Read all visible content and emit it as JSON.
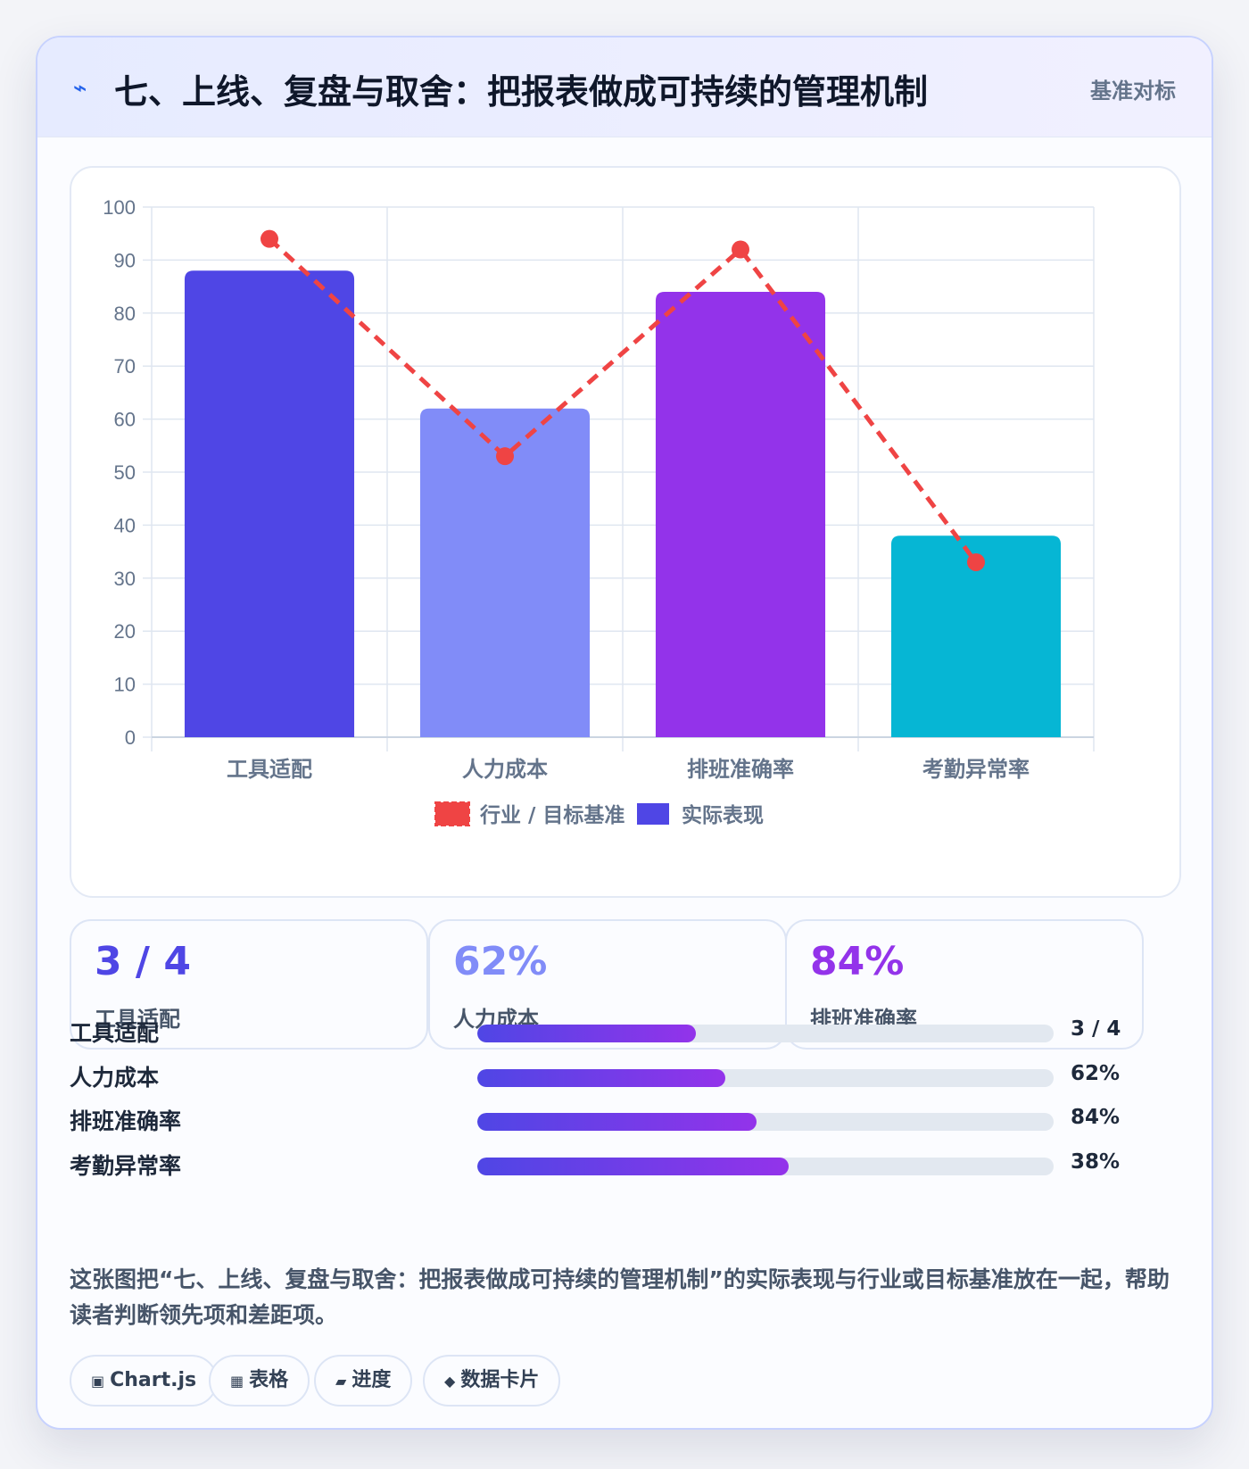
{
  "header": {
    "icon": "⌁",
    "title": "七、上线、复盘与取舍：把报表做成可持续的管理机制",
    "tag": "基准对标"
  },
  "chart_data": {
    "type": "bar",
    "categories": [
      "工具适配",
      "人力成本",
      "排班准确率",
      "考勤异常率"
    ],
    "series": [
      {
        "name": "实际表现",
        "type": "bar",
        "values": [
          88,
          62,
          84,
          38
        ],
        "colors": [
          "#4f46e5",
          "#818cf8",
          "#9333ea",
          "#06b6d4"
        ]
      },
      {
        "name": "行业 / 目标基准",
        "type": "line",
        "values": [
          94,
          53,
          92,
          33
        ],
        "color": "#ef4444",
        "dashed": true
      }
    ],
    "ylim": [
      0,
      100
    ],
    "yticks": [
      0,
      10,
      20,
      30,
      40,
      50,
      60,
      70,
      80,
      90,
      100
    ],
    "grid": true,
    "legend": "bottom",
    "legend_order": [
      "行业 / 目标基准",
      "实际表现"
    ]
  },
  "stats": [
    {
      "value": "3 / 4",
      "label": "工具适配",
      "color": "#4f46e5"
    },
    {
      "value": "62%",
      "label": "人力成本",
      "color": "#818cf8"
    },
    {
      "value": "84%",
      "label": "排班准确率",
      "color": "#9333ea"
    }
  ],
  "progress": [
    {
      "label": "工具适配",
      "value": "3 / 4",
      "fill": 0.38
    },
    {
      "label": "人力成本",
      "value": "62%",
      "fill": 0.43
    },
    {
      "label": "排班准确率",
      "value": "84%",
      "fill": 0.485
    },
    {
      "label": "考勤异常率",
      "value": "38%",
      "fill": 0.54
    }
  ],
  "description": "这张图把“七、上线、复盘与取舍：把报表做成可持续的管理机制”的实际表现与行业或目标基准放在一起，帮助读者判断领先项和差距项。",
  "chips": [
    {
      "icon": "▣",
      "label": "Chart.js"
    },
    {
      "icon": "▦",
      "label": "表格"
    },
    {
      "icon": "▰",
      "label": "进度"
    },
    {
      "icon": "◆",
      "label": "数据卡片"
    }
  ]
}
